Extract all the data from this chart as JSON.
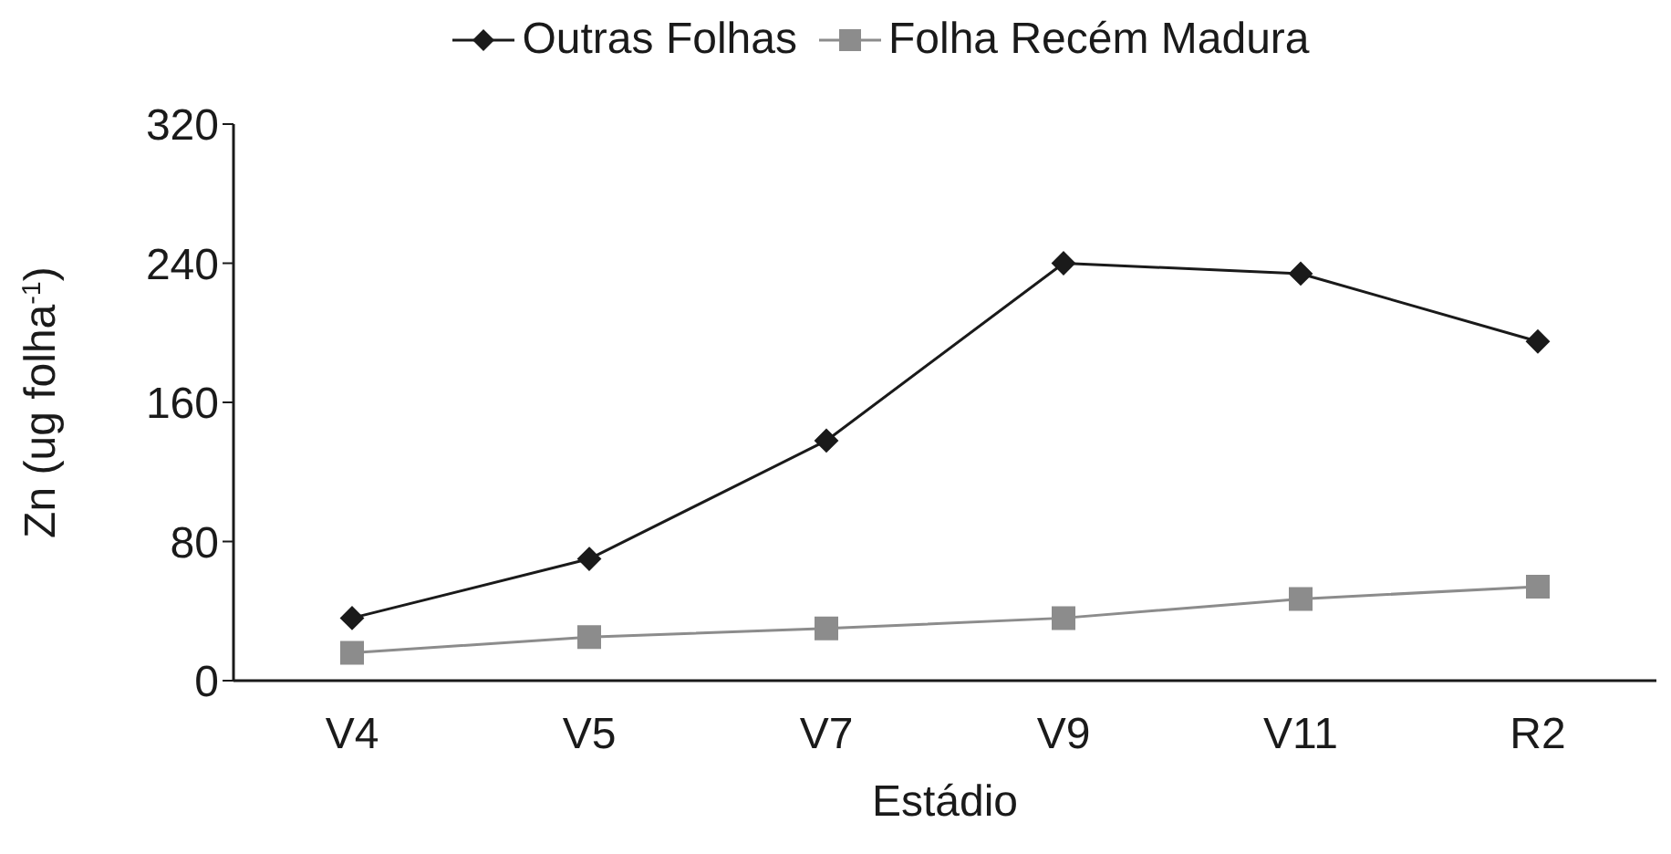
{
  "chart_data": {
    "type": "line",
    "xlabel": "Estádio",
    "ylabel": "Zn (ug folha$^{-1}$)",
    "categories": [
      "V4",
      "V5",
      "V7",
      "V9",
      "V11",
      "R2"
    ],
    "series": [
      {
        "name": "Outras Folhas",
        "color": "#1a1a1a",
        "marker": "diamond",
        "values": [
          36,
          70,
          138,
          240,
          234,
          195
        ]
      },
      {
        "name": "Folha Recém Madura",
        "color": "#8c8c8c",
        "marker": "square",
        "values": [
          16,
          25,
          30,
          36,
          47,
          54
        ]
      }
    ],
    "ylim": [
      0,
      320
    ],
    "yticks": [
      0,
      80,
      160,
      240,
      320
    ],
    "grid": false,
    "legend": "top"
  }
}
